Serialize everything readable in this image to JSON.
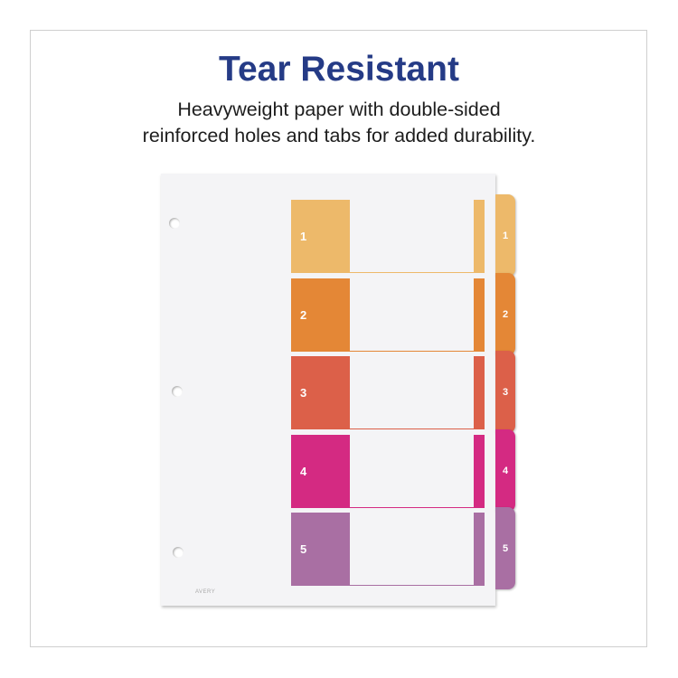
{
  "headline": "Tear Resistant",
  "subtitle_lines": [
    "Heavyweight paper with double-sided",
    "reinforced holes and tabs for added durability."
  ],
  "brand_logo": "AVERY",
  "tabs": [
    {
      "label": "1",
      "color": "#edb96a"
    },
    {
      "label": "2",
      "color": "#e48736"
    },
    {
      "label": "3",
      "color": "#dc6049"
    },
    {
      "label": "4",
      "color": "#d42a82"
    },
    {
      "label": "5",
      "color": "#a96fa3"
    }
  ]
}
